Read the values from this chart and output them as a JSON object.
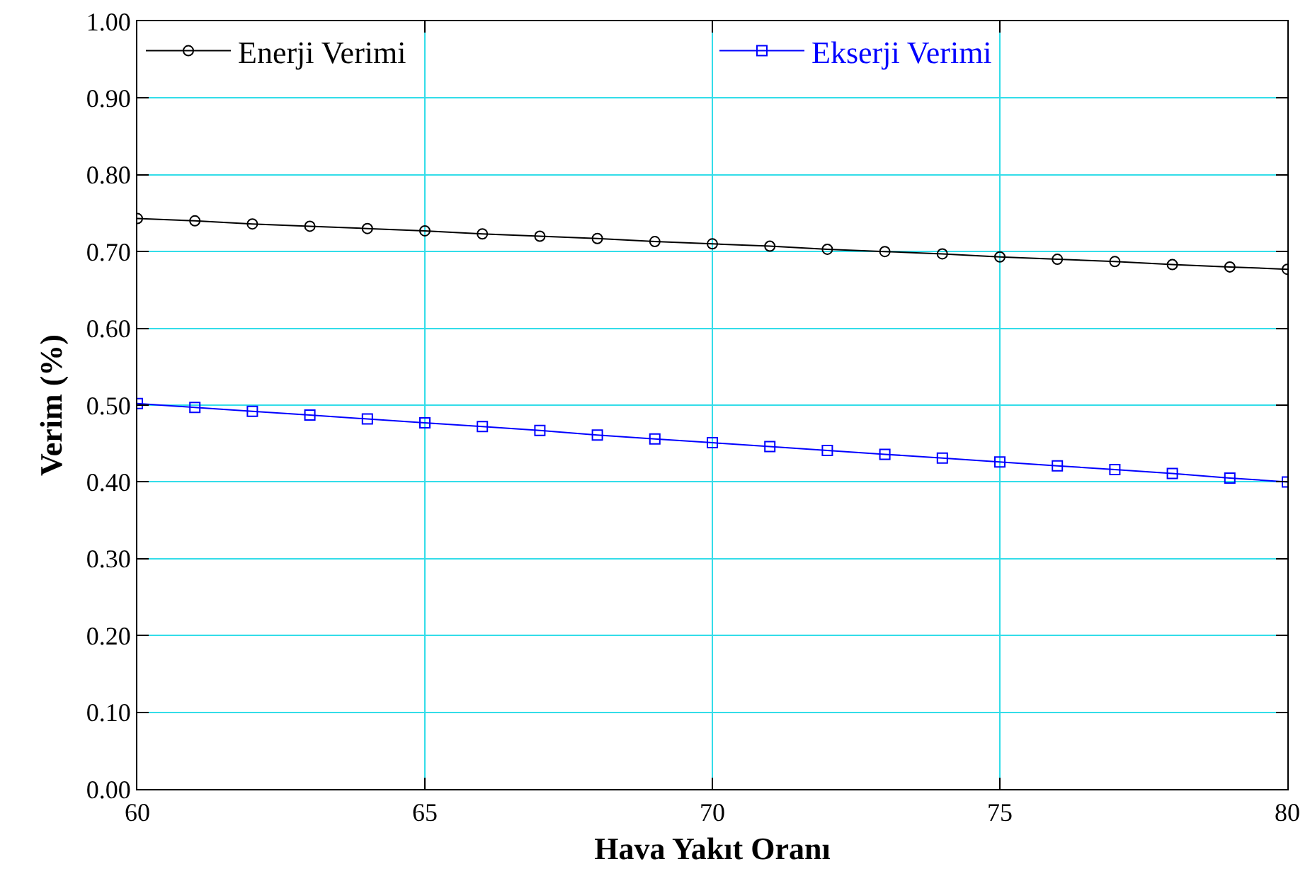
{
  "chart_data": {
    "type": "line",
    "xlabel": "Hava Yakıt Oranı",
    "ylabel": "Verim (%)",
    "x": [
      60,
      61,
      62,
      63,
      64,
      65,
      66,
      67,
      68,
      69,
      70,
      71,
      72,
      73,
      74,
      75,
      76,
      77,
      78,
      79,
      80
    ],
    "series": [
      {
        "name": "Enerji Verimi",
        "color": "#000000",
        "marker": "circle",
        "values": [
          0.743,
          0.74,
          0.736,
          0.733,
          0.73,
          0.727,
          0.723,
          0.72,
          0.717,
          0.713,
          0.71,
          0.707,
          0.703,
          0.7,
          0.697,
          0.693,
          0.69,
          0.687,
          0.683,
          0.68,
          0.677
        ]
      },
      {
        "name": "Ekserji Verimi",
        "color": "#0000ff",
        "marker": "square",
        "values": [
          0.502,
          0.497,
          0.492,
          0.487,
          0.482,
          0.477,
          0.472,
          0.467,
          0.461,
          0.456,
          0.451,
          0.446,
          0.441,
          0.436,
          0.431,
          0.426,
          0.421,
          0.416,
          0.411,
          0.405,
          0.4
        ]
      }
    ],
    "xlim": [
      60,
      80
    ],
    "xticks": [
      60,
      65,
      70,
      75,
      80
    ],
    "ylim": [
      0,
      1
    ],
    "yticks": [
      {
        "value": 0,
        "label": "0.00"
      },
      {
        "value": 0.1,
        "label": "0.10"
      },
      {
        "value": 0.2,
        "label": "0.20"
      },
      {
        "value": 0.3,
        "label": "0.30"
      },
      {
        "value": 0.4,
        "label": "0.40"
      },
      {
        "value": 0.5,
        "label": "0.50"
      },
      {
        "value": 0.6,
        "label": "0.60"
      },
      {
        "value": 0.7,
        "label": "0.70"
      },
      {
        "value": 0.8,
        "label": "0.80"
      },
      {
        "value": 0.9,
        "label": "0.90"
      },
      {
        "value": 1,
        "label": "1.00"
      }
    ],
    "grid": true,
    "legend": "top",
    "line_style": "solid"
  }
}
